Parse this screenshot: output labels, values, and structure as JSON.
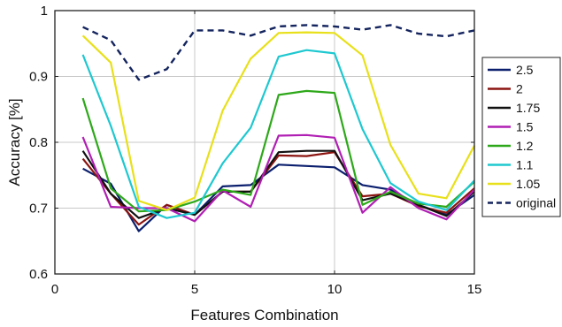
{
  "chart_data": {
    "type": "line",
    "xlabel": "Features Combination",
    "ylabel": "Accuracy [%]",
    "xlim": [
      0,
      15
    ],
    "ylim": [
      0.6,
      1.0
    ],
    "xticks": [
      0,
      5,
      10,
      15
    ],
    "yticks": [
      0.6,
      0.7,
      0.8,
      0.9,
      1.0
    ],
    "xtick_labels": [
      "0",
      "5",
      "10",
      "15"
    ],
    "ytick_labels": [
      "0.6",
      "0.7",
      "0.8",
      "0.9",
      "1"
    ],
    "grid": true,
    "legend_position": "outside-right",
    "x": [
      1,
      2,
      3,
      4,
      5,
      6,
      7,
      8,
      9,
      10,
      11,
      12,
      13,
      14,
      15
    ],
    "series": [
      {
        "name": "2.5",
        "color": "#0b1f6e",
        "dash": "solid",
        "values": [
          0.76,
          0.737,
          0.665,
          0.705,
          0.69,
          0.733,
          0.735,
          0.766,
          0.764,
          0.762,
          0.735,
          0.728,
          0.705,
          0.69,
          0.72
        ]
      },
      {
        "name": "2",
        "color": "#8b1410",
        "dash": "solid",
        "values": [
          0.775,
          0.722,
          0.675,
          0.705,
          0.69,
          0.725,
          0.725,
          0.78,
          0.779,
          0.785,
          0.718,
          0.722,
          0.703,
          0.693,
          0.73
        ]
      },
      {
        "name": "1.75",
        "color": "#111111",
        "dash": "solid",
        "values": [
          0.787,
          0.722,
          0.685,
          0.7,
          0.69,
          0.725,
          0.725,
          0.785,
          0.787,
          0.787,
          0.712,
          0.722,
          0.705,
          0.688,
          0.725
        ]
      },
      {
        "name": "1.5",
        "color": "#b01fb3",
        "dash": "solid",
        "values": [
          0.808,
          0.702,
          0.7,
          0.7,
          0.68,
          0.727,
          0.702,
          0.81,
          0.811,
          0.807,
          0.693,
          0.732,
          0.7,
          0.683,
          0.728
        ]
      },
      {
        "name": "1.2",
        "color": "#2ea81a",
        "dash": "solid",
        "values": [
          0.867,
          0.73,
          0.695,
          0.697,
          0.71,
          0.728,
          0.72,
          0.872,
          0.878,
          0.875,
          0.705,
          0.725,
          0.707,
          0.702,
          0.74
        ]
      },
      {
        "name": "1.1",
        "color": "#1ec8d0",
        "dash": "solid",
        "values": [
          0.933,
          0.825,
          0.702,
          0.685,
          0.693,
          0.768,
          0.822,
          0.93,
          0.94,
          0.935,
          0.82,
          0.738,
          0.71,
          0.697,
          0.742
        ]
      },
      {
        "name": "1.05",
        "color": "#e8e01a",
        "dash": "solid",
        "values": [
          0.962,
          0.921,
          0.711,
          0.697,
          0.716,
          0.848,
          0.927,
          0.966,
          0.967,
          0.966,
          0.932,
          0.796,
          0.722,
          0.715,
          0.795
        ]
      },
      {
        "name": "original",
        "color": "#14245e",
        "dash": "dashed",
        "values": [
          0.975,
          0.955,
          0.895,
          0.911,
          0.97,
          0.97,
          0.962,
          0.976,
          0.978,
          0.976,
          0.971,
          0.978,
          0.965,
          0.961,
          0.97
        ]
      }
    ]
  }
}
